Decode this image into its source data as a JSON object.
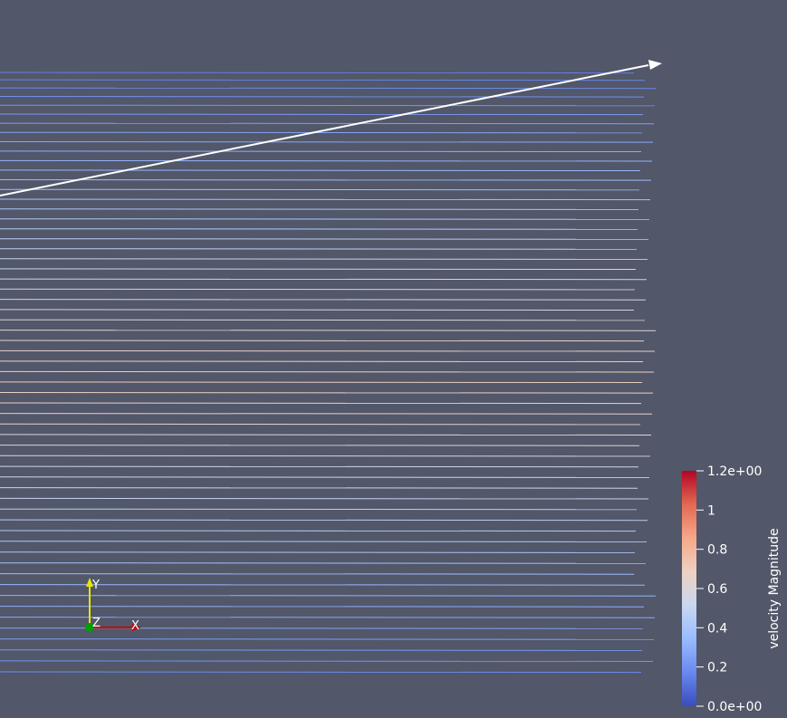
{
  "view": {
    "background": "#525769",
    "streamline_count": 60
  },
  "scalar_bar": {
    "title": "velocity Magnitude",
    "range": [
      0.0,
      1.2
    ],
    "ticks": [
      {
        "value": 1.2,
        "label": "1.2e+00"
      },
      {
        "value": 1.0,
        "label": "1"
      },
      {
        "value": 0.8,
        "label": "0.8"
      },
      {
        "value": 0.6,
        "label": "0.6"
      },
      {
        "value": 0.4,
        "label": "0.4"
      },
      {
        "value": 0.2,
        "label": "0.2"
      },
      {
        "value": 0.0,
        "label": "0.0e+00"
      }
    ],
    "colormap": [
      "#3b4cc0",
      "#6889ee",
      "#9abbff",
      "#c9d7f0",
      "#edd1c2",
      "#f7a889",
      "#e26952",
      "#b40426"
    ]
  },
  "orientation_axes": {
    "x_label": "X",
    "y_label": "Y",
    "z_label": "Z",
    "x_color": "#cc0000",
    "y_color": "#e6e600",
    "z_color": "#00a000"
  },
  "probe_arrow": {
    "color": "#ffffff"
  }
}
